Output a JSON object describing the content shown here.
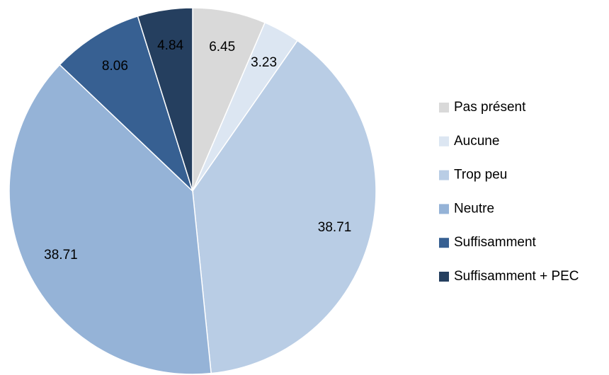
{
  "chart_data": {
    "type": "pie",
    "categories": [
      "Pas présent",
      "Aucune",
      "Trop peu",
      "Neutre",
      "Suffisamment",
      "Suffisamment + PEC"
    ],
    "values": [
      6.45,
      3.23,
      38.71,
      38.71,
      8.06,
      4.84
    ],
    "colors": [
      "#d9d9d9",
      "#dce6f2",
      "#b9cde5",
      "#95b3d7",
      "#376092",
      "#253f5f"
    ],
    "legend": "right"
  }
}
